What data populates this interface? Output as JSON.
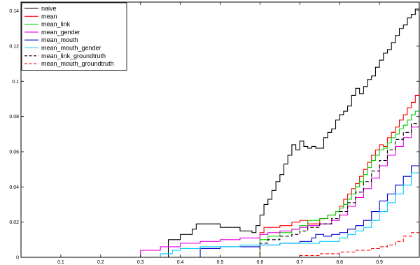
{
  "chart_data": {
    "type": "line",
    "title": "",
    "xlabel": "",
    "ylabel": "",
    "xlim": [
      0,
      1
    ],
    "ylim": [
      0,
      0.145
    ],
    "x_ticks": [
      0.1,
      0.2,
      0.3,
      0.4,
      0.5,
      0.6,
      0.7,
      0.8,
      0.9
    ],
    "x_tick_labels": [
      "0.1",
      "0.2",
      "0.3",
      "0.4",
      "0.5",
      "0.6",
      "0.7",
      "0.8",
      "0.9"
    ],
    "y_ticks": [
      0,
      0.02,
      0.04,
      0.06,
      0.08,
      0.1,
      0.12,
      0.14
    ],
    "y_tick_labels": [
      "0",
      "0.02",
      "0.04",
      "0.06",
      "0.08",
      "0.1",
      "0.12",
      "0.14"
    ],
    "grid": false,
    "legend_position": "top-left",
    "series": [
      {
        "name": "naive",
        "color": "#000000",
        "dash": "solid",
        "x": [
          0.0,
          0.36,
          0.37,
          0.4,
          0.43,
          0.44,
          0.45,
          0.5,
          0.55,
          0.58,
          0.59,
          0.6,
          0.61,
          0.62,
          0.63,
          0.64,
          0.65,
          0.66,
          0.67,
          0.68,
          0.69,
          0.7,
          0.71,
          0.72,
          0.73,
          0.74,
          0.75,
          0.76,
          0.77,
          0.78,
          0.79,
          0.8,
          0.81,
          0.82,
          0.83,
          0.84,
          0.85,
          0.86,
          0.87,
          0.88,
          0.89,
          0.9,
          0.91,
          0.92,
          0.93,
          0.94,
          0.95,
          0.96,
          0.97,
          0.98,
          0.99,
          1.0
        ],
        "y": [
          0.0,
          0.0,
          0.01,
          0.013,
          0.016,
          0.019,
          0.019,
          0.017,
          0.015,
          0.014,
          0.018,
          0.024,
          0.03,
          0.033,
          0.038,
          0.043,
          0.047,
          0.053,
          0.058,
          0.064,
          0.061,
          0.066,
          0.063,
          0.062,
          0.063,
          0.062,
          0.062,
          0.068,
          0.071,
          0.073,
          0.078,
          0.081,
          0.083,
          0.086,
          0.092,
          0.096,
          0.093,
          0.097,
          0.101,
          0.103,
          0.108,
          0.112,
          0.116,
          0.118,
          0.122,
          0.126,
          0.13,
          0.132,
          0.136,
          0.138,
          0.141,
          0.145
        ]
      },
      {
        "name": "mean",
        "color": "#ff0000",
        "dash": "solid",
        "x": [
          0.0,
          0.56,
          0.6,
          0.61,
          0.65,
          0.68,
          0.7,
          0.72,
          0.75,
          0.77,
          0.79,
          0.8,
          0.81,
          0.82,
          0.83,
          0.84,
          0.85,
          0.86,
          0.87,
          0.88,
          0.89,
          0.9,
          0.91,
          0.92,
          0.93,
          0.94,
          0.95,
          0.96,
          0.97,
          0.98,
          0.99,
          1.0
        ],
        "y": [
          0.0,
          0.0,
          0.014,
          0.017,
          0.018,
          0.02,
          0.021,
          0.019,
          0.022,
          0.024,
          0.026,
          0.029,
          0.033,
          0.036,
          0.039,
          0.042,
          0.046,
          0.05,
          0.054,
          0.058,
          0.061,
          0.064,
          0.063,
          0.068,
          0.071,
          0.074,
          0.078,
          0.081,
          0.085,
          0.088,
          0.092,
          0.096
        ]
      },
      {
        "name": "mean_link",
        "color": "#00d000",
        "dash": "solid",
        "x": [
          0.0,
          0.56,
          0.6,
          0.62,
          0.65,
          0.68,
          0.7,
          0.72,
          0.75,
          0.77,
          0.79,
          0.8,
          0.81,
          0.82,
          0.83,
          0.84,
          0.85,
          0.86,
          0.87,
          0.88,
          0.89,
          0.9,
          0.91,
          0.92,
          0.93,
          0.94,
          0.95,
          0.96,
          0.97,
          0.98,
          0.99,
          1.0
        ],
        "y": [
          0.0,
          0.0,
          0.01,
          0.012,
          0.014,
          0.016,
          0.018,
          0.021,
          0.022,
          0.024,
          0.026,
          0.028,
          0.03,
          0.033,
          0.036,
          0.04,
          0.043,
          0.047,
          0.051,
          0.055,
          0.058,
          0.061,
          0.062,
          0.065,
          0.068,
          0.07,
          0.073,
          0.075,
          0.078,
          0.081,
          0.083,
          0.086
        ]
      },
      {
        "name": "mean_gender",
        "color": "#e000e0",
        "dash": "solid",
        "x": [
          0.0,
          0.29,
          0.3,
          0.35,
          0.4,
          0.45,
          0.5,
          0.55,
          0.6,
          0.62,
          0.65,
          0.68,
          0.7,
          0.72,
          0.75,
          0.78,
          0.8,
          0.82,
          0.84,
          0.86,
          0.88,
          0.9,
          0.92,
          0.94,
          0.96,
          0.98,
          1.0
        ],
        "y": [
          0.0,
          0.0,
          0.004,
          0.006,
          0.008,
          0.009,
          0.01,
          0.011,
          0.013,
          0.014,
          0.015,
          0.016,
          0.017,
          0.018,
          0.019,
          0.021,
          0.024,
          0.029,
          0.034,
          0.039,
          0.045,
          0.052,
          0.058,
          0.063,
          0.068,
          0.074,
          0.08
        ]
      },
      {
        "name": "mean_mouth",
        "color": "#0000cc",
        "dash": "solid",
        "x": [
          0.0,
          0.44,
          0.45,
          0.46,
          0.5,
          0.55,
          0.6,
          0.65,
          0.7,
          0.73,
          0.74,
          0.76,
          0.78,
          0.8,
          0.82,
          0.84,
          0.86,
          0.88,
          0.9,
          0.92,
          0.94,
          0.96,
          0.98,
          1.0
        ],
        "y": [
          0.0,
          0.0,
          0.005,
          0.005,
          0.006,
          0.006,
          0.007,
          0.008,
          0.009,
          0.011,
          0.013,
          0.012,
          0.013,
          0.014,
          0.016,
          0.018,
          0.021,
          0.026,
          0.032,
          0.036,
          0.041,
          0.046,
          0.052,
          0.064
        ]
      },
      {
        "name": "mean_mouth_gender",
        "color": "#00ccff",
        "dash": "solid",
        "x": [
          0.0,
          0.34,
          0.35,
          0.38,
          0.4,
          0.45,
          0.5,
          0.55,
          0.6,
          0.65,
          0.7,
          0.75,
          0.8,
          0.82,
          0.84,
          0.86,
          0.88,
          0.9,
          0.92,
          0.94,
          0.96,
          0.98,
          1.0
        ],
        "y": [
          0.0,
          0.0,
          0.002,
          0.004,
          0.005,
          0.006,
          0.006,
          0.007,
          0.007,
          0.008,
          0.008,
          0.009,
          0.011,
          0.013,
          0.015,
          0.017,
          0.021,
          0.026,
          0.031,
          0.036,
          0.041,
          0.048,
          0.059
        ]
      },
      {
        "name": "mean_link_groundtruth",
        "color": "#000000",
        "dash": "dashed",
        "x": [
          0.0,
          0.56,
          0.6,
          0.62,
          0.65,
          0.68,
          0.7,
          0.72,
          0.75,
          0.78,
          0.8,
          0.82,
          0.84,
          0.86,
          0.88,
          0.9,
          0.92,
          0.94,
          0.96,
          0.98,
          1.0
        ],
        "y": [
          0.0,
          0.0,
          0.008,
          0.01,
          0.012,
          0.013,
          0.015,
          0.017,
          0.019,
          0.022,
          0.026,
          0.031,
          0.037,
          0.043,
          0.049,
          0.055,
          0.061,
          0.067,
          0.071,
          0.076,
          0.083
        ]
      },
      {
        "name": "mean_mouth_groundtruth",
        "color": "#ff0000",
        "dash": "dashed",
        "x": [
          0.0,
          0.55,
          0.7,
          0.75,
          0.8,
          0.84,
          0.86,
          0.88,
          0.9,
          0.92,
          0.94,
          0.96,
          0.98,
          1.0
        ],
        "y": [
          0.0,
          0.0,
          0.001,
          0.002,
          0.003,
          0.004,
          0.004,
          0.005,
          0.006,
          0.007,
          0.009,
          0.012,
          0.014,
          0.023
        ]
      }
    ]
  }
}
